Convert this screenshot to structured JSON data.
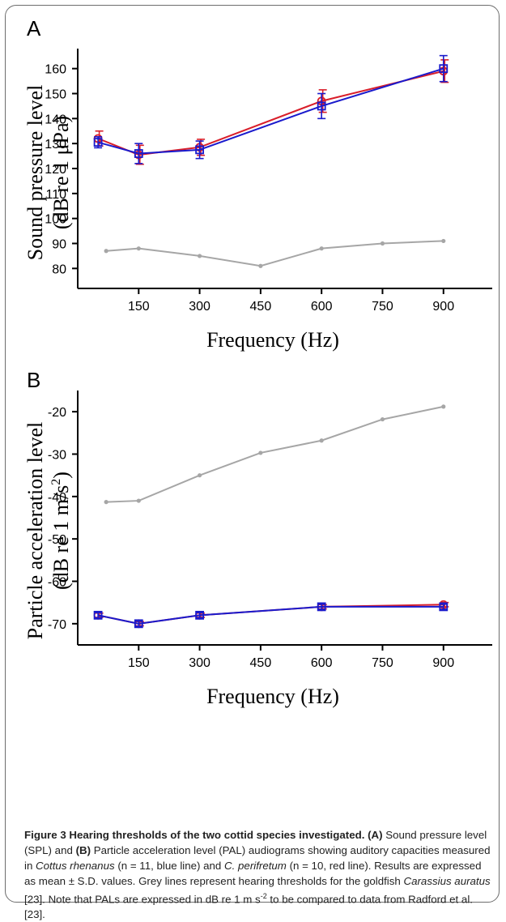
{
  "colors": {
    "c_rhenanus": "#1a1acc",
    "c_perifretum": "#d91e2a",
    "goldfish": "#a6a6a6"
  },
  "panels": [
    {
      "letter": "A",
      "ylabel_line1": "Sound pressure level",
      "ylabel_line2": "(dB re 1 μPa)"
    },
    {
      "letter": "B",
      "ylabel_line1": "Particle acceleration level",
      "ylabel_line2_pre": "(dB re 1 m/s",
      "ylabel_line2_sup": "2",
      "ylabel_line2_post": ")"
    }
  ],
  "caption": {
    "lead": "Figure 3 Hearing thresholds of the two cottid species investigated.",
    "p1": " (A)",
    "t1": " Sound pressure level (SPL) and ",
    "p2": "(B)",
    "t2": " Particle acceleration level (PAL) audiograms showing auditory capacities measured in ",
    "sp1": "Cottus rhenanus",
    "t3": " (n = 11, blue line) and ",
    "sp2": "C. perifretum",
    "t4": " (n = 10, red line). Results are expressed as mean ± S.D. values. Grey lines represent hearing thresholds for the goldfish ",
    "sp3": "Carassius auratus",
    "t5": " [23]. Note that PALs are expressed in dB re 1 m s",
    "sup": "-2",
    "t6": " to be compared to data from Radford et al. [23]."
  },
  "chart_data": [
    {
      "type": "line",
      "panel": "A",
      "xlabel": "Frequency (Hz)",
      "ylabel": "Sound pressure level (dB re 1 μPa)",
      "xticks": [
        150,
        300,
        450,
        600,
        750,
        900
      ],
      "yticks": [
        80,
        90,
        100,
        110,
        120,
        130,
        140,
        150,
        160
      ],
      "xlim": [
        0,
        1020
      ],
      "ylim": [
        72,
        168
      ],
      "grid": false,
      "series": [
        {
          "key": "c_rhenanus",
          "marker": "square",
          "x": [
            50,
            150,
            300,
            600,
            900
          ],
          "y": [
            130.5,
            126,
            127.5,
            145,
            160
          ],
          "err": [
            2.2,
            4,
            3.5,
            5,
            5.2
          ]
        },
        {
          "key": "c_perifretum",
          "marker": "circle",
          "x": [
            50,
            150,
            300,
            600,
            900
          ],
          "y": [
            132,
            125.5,
            128.5,
            147,
            159
          ],
          "err": [
            3,
            3.8,
            3.2,
            4.5,
            4.5
          ]
        },
        {
          "key": "goldfish",
          "marker": "dot",
          "x": [
            70,
            150,
            300,
            450,
            600,
            750,
            900
          ],
          "y": [
            87,
            88,
            85,
            81,
            88,
            90,
            91
          ],
          "err": null
        }
      ]
    },
    {
      "type": "line",
      "panel": "B",
      "xlabel": "Frequency (Hz)",
      "ylabel": "Particle acceleration level (dB re 1 m/s²)",
      "xticks": [
        150,
        300,
        450,
        600,
        750,
        900
      ],
      "yticks": [
        -70,
        -60,
        -50,
        -40,
        -30,
        -20
      ],
      "xlim": [
        0,
        1020
      ],
      "ylim": [
        -75,
        -15
      ],
      "grid": false,
      "series": [
        {
          "key": "c_rhenanus",
          "marker": "square",
          "x": [
            50,
            150,
            300,
            600,
            900
          ],
          "y": [
            -68,
            -70,
            -68,
            -66,
            -66
          ],
          "err": [
            0.6,
            0.6,
            0.6,
            0.6,
            0.6
          ]
        },
        {
          "key": "c_perifretum",
          "marker": "circle",
          "x": [
            50,
            150,
            300,
            600,
            900
          ],
          "y": [
            -68,
            -70,
            -68,
            -66,
            -65.5
          ],
          "err": [
            0.5,
            0.5,
            0.5,
            0.5,
            0.5
          ]
        },
        {
          "key": "goldfish",
          "marker": "dot",
          "x": [
            70,
            150,
            300,
            450,
            600,
            750,
            900
          ],
          "y": [
            -41.3,
            -41,
            -35,
            -29.7,
            -26.8,
            -21.8,
            -18.8
          ],
          "err": null
        }
      ]
    }
  ]
}
